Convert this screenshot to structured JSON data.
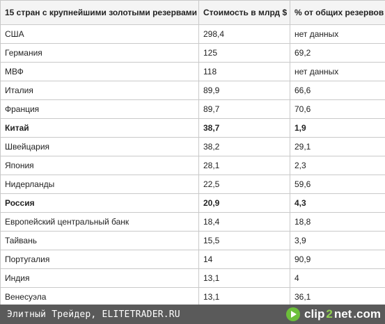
{
  "table": {
    "headers": [
      "15 стран с крупнейшими золотыми резервами",
      "Стоимость в млрд $",
      "% от общих резервов"
    ],
    "rows": [
      {
        "country": "США",
        "value": "298,4",
        "percent": "нет данных",
        "bold": false
      },
      {
        "country": "Германия",
        "value": "125",
        "percent": "69,2",
        "bold": false
      },
      {
        "country": "МВФ",
        "value": "118",
        "percent": "нет данных",
        "bold": false
      },
      {
        "country": "Италия",
        "value": "89,9",
        "percent": "66,6",
        "bold": false
      },
      {
        "country": "Франция",
        "value": "89,7",
        "percent": "70,6",
        "bold": false
      },
      {
        "country": "Китай",
        "value": "38,7",
        "percent": "1,9",
        "bold": true
      },
      {
        "country": "Швейцария",
        "value": "38,2",
        "percent": "29,1",
        "bold": false
      },
      {
        "country": "Япония",
        "value": "28,1",
        "percent": "2,3",
        "bold": false
      },
      {
        "country": "Нидерланды",
        "value": "22,5",
        "percent": "59,6",
        "bold": false
      },
      {
        "country": "Россия",
        "value": "20,9",
        "percent": "4,3",
        "bold": true
      },
      {
        "country": "Европейский центральный банк",
        "value": "18,4",
        "percent": "18,8",
        "bold": false
      },
      {
        "country": "Тайвань",
        "value": "15,5",
        "percent": "3,9",
        "bold": false
      },
      {
        "country": "Португалия",
        "value": "14",
        "percent": "90,9",
        "bold": false
      },
      {
        "country": "Индия",
        "value": "13,1",
        "percent": "4",
        "bold": false
      },
      {
        "country": "Венесуэла",
        "value": "13,1",
        "percent": "36,1",
        "bold": false
      }
    ]
  },
  "footer": {
    "caption": "Элитный Трейдер, ELITETRADER.RU",
    "brand": {
      "part1": "clip",
      "part2": "2",
      "part3": "net",
      "suffix": ".com",
      "icon": "play-circle-icon"
    }
  }
}
